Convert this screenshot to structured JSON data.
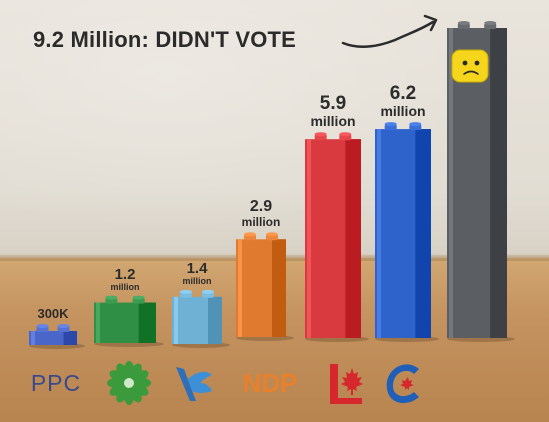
{
  "headline": "9.2 Million: DIDN'T VOTE",
  "chart_data": {
    "type": "bar",
    "categories": [
      "PPC",
      "Green",
      "Bloc",
      "NDP",
      "Liberal",
      "Conservative",
      "Didn't vote"
    ],
    "values": [
      0.3,
      1.2,
      1.4,
      2.9,
      5.9,
      6.2,
      9.2
    ],
    "unit": "million",
    "labels": [
      {
        "num": "300K",
        "unit": ""
      },
      {
        "num": "1.2",
        "unit": "million"
      },
      {
        "num": "1.4",
        "unit": "million"
      },
      {
        "num": "2.9",
        "unit": "million"
      },
      {
        "num": "5.9",
        "unit": "million"
      },
      {
        "num": "6.2",
        "unit": "million"
      },
      {
        "num": "",
        "unit": ""
      }
    ],
    "colors": [
      "#4a66c8",
      "#2f8f44",
      "#6fb1d4",
      "#e07a2e",
      "#d83a3f",
      "#2f63cc",
      "#5b5e63"
    ],
    "ylim": [
      0,
      9.2
    ]
  },
  "logos": {
    "ppc": {
      "text": "PPC",
      "color": "#3a4a8a"
    },
    "green": {
      "icon": "green-party-flower-icon",
      "color": "#3a9a3c"
    },
    "bloc": {
      "icon": "bloc-quebecois-icon",
      "color": "#2f6fb8"
    },
    "ndp": {
      "text": "NDP",
      "color": "#e8802c"
    },
    "liberal": {
      "icon": "liberal-maple-leaf-icon",
      "color": "#d6282c"
    },
    "conservative": {
      "icon": "conservative-c-icon",
      "color": "#1f5fb8"
    }
  },
  "face_icon": "sad-lego-face-icon"
}
